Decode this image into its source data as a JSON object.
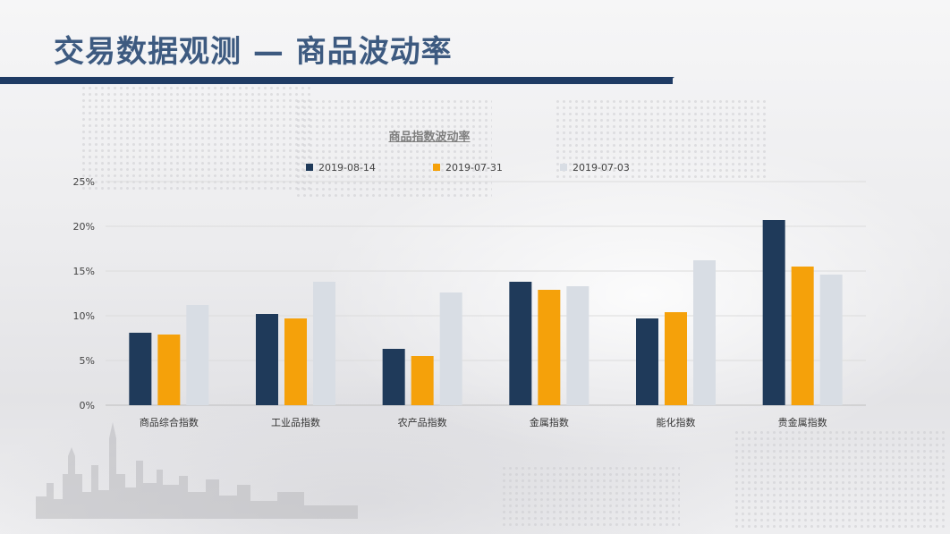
{
  "header": {
    "title": "交易数据观测 — 商品波动率",
    "accent_color": "#1f3b64",
    "title_color": "#3d5a80"
  },
  "chart_data": {
    "type": "bar",
    "title": "商品指数波动率",
    "categories": [
      "商品综合指数",
      "工业品指数",
      "农产品指数",
      "金属指数",
      "能化指数",
      "贵金属指数"
    ],
    "series": [
      {
        "name": "2019-08-14",
        "color": "#1f3a5a",
        "values": [
          8.1,
          10.2,
          6.3,
          13.8,
          9.7,
          20.7
        ]
      },
      {
        "name": "2019-07-31",
        "color": "#f5a10a",
        "values": [
          7.9,
          9.7,
          5.5,
          12.9,
          10.4,
          15.5
        ]
      },
      {
        "name": "2019-07-03",
        "color": "#d8dde4",
        "values": [
          11.2,
          13.8,
          12.6,
          13.3,
          16.2,
          14.6
        ]
      }
    ],
    "ylim": [
      0,
      25
    ],
    "yticks": [
      "0%",
      "5%",
      "10%",
      "15%",
      "20%",
      "25%"
    ],
    "grid": true,
    "legend_position": "top"
  }
}
